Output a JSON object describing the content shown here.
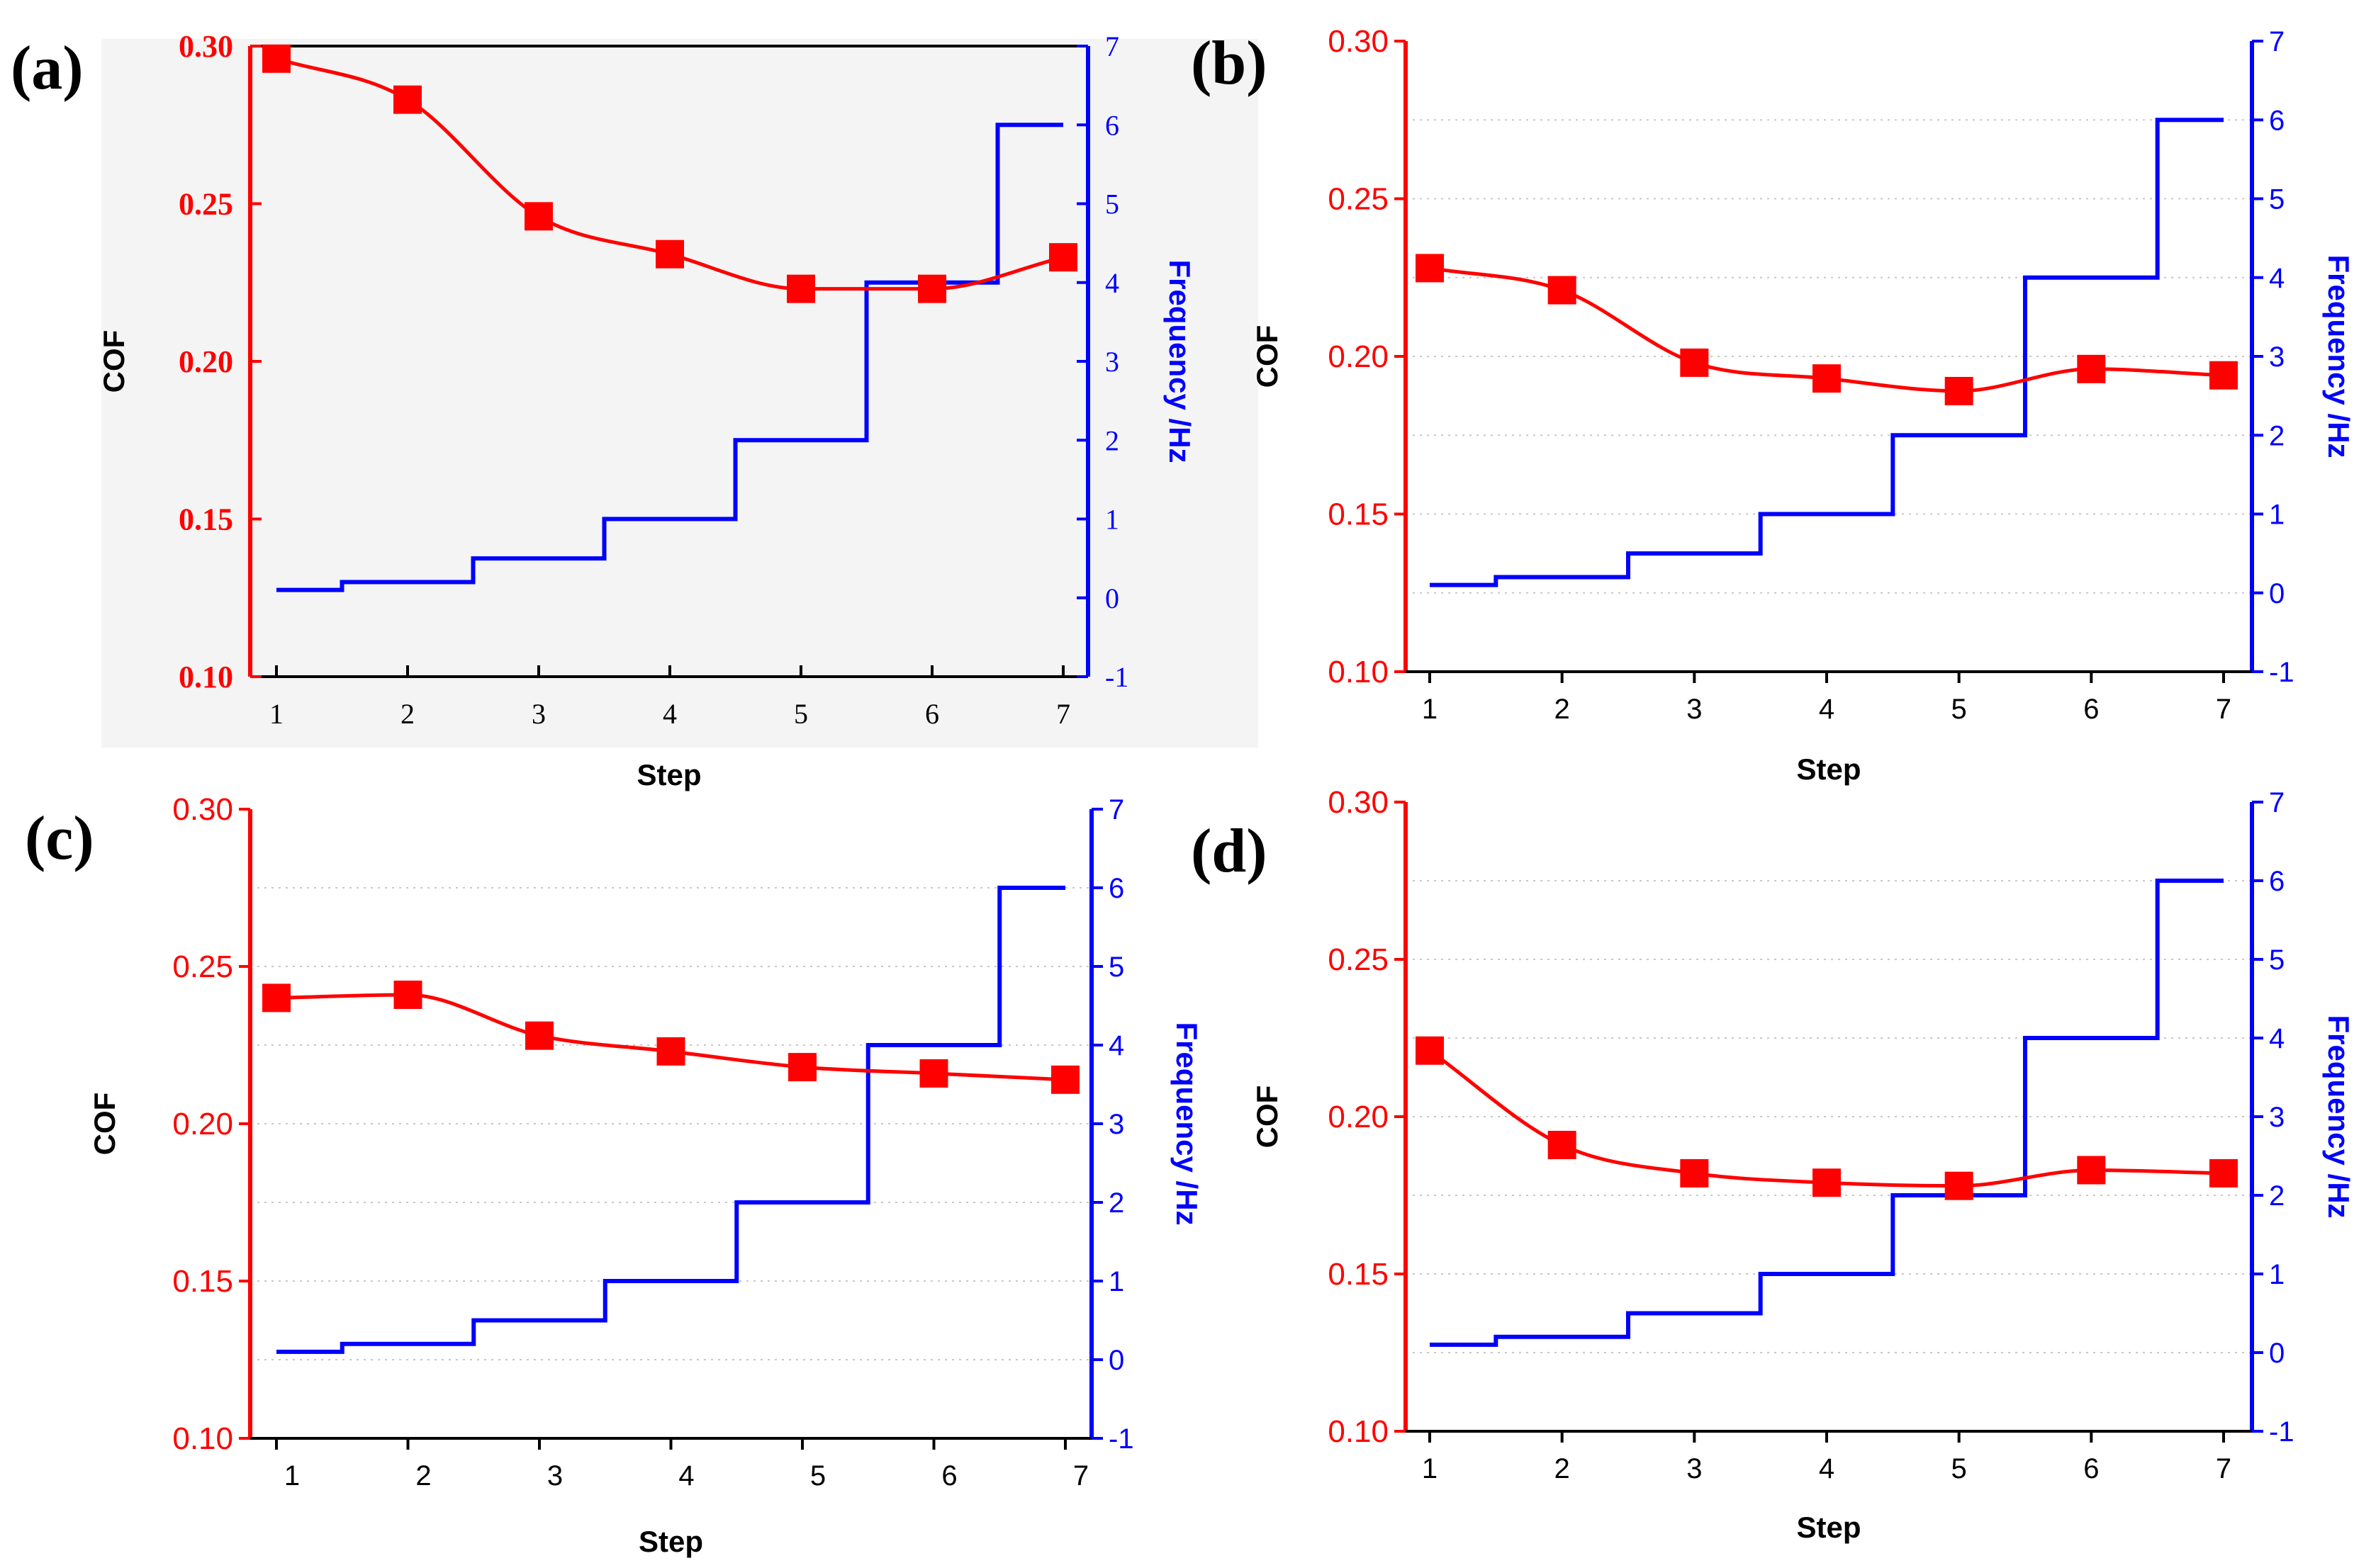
{
  "colors": {
    "cof": "#ff0000",
    "frequency": "#0000ff",
    "axis": "#000000",
    "grid": "#c8c8c8"
  },
  "chart_data": [
    {
      "panel": "(a)",
      "type": "line",
      "xlabel": "Step",
      "ylabel_left": "COF",
      "ylabel_right": "Frequency /Hz",
      "x_ticks": [
        1,
        2,
        3,
        4,
        5,
        6,
        7
      ],
      "y_left": {
        "range": [
          0.1,
          0.3
        ],
        "ticks": [
          "0.10",
          "0.15",
          "0.20",
          "0.25",
          "0.30"
        ]
      },
      "y_right": {
        "range": [
          -1,
          7
        ],
        "ticks": [
          "-1",
          "0",
          "1",
          "2",
          "3",
          "4",
          "5",
          "6",
          "7"
        ]
      },
      "grid": false,
      "series": [
        {
          "axis": "left",
          "marker": "square",
          "x": [
            1,
            2,
            3,
            4,
            5,
            6,
            7
          ],
          "y": [
            0.296,
            0.283,
            0.246,
            0.234,
            0.223,
            0.223,
            0.233
          ]
        },
        {
          "axis": "right",
          "style": "step",
          "x": [
            1,
            2,
            3,
            4,
            5,
            6,
            7
          ],
          "y": [
            0.1,
            0.2,
            0.5,
            1,
            2,
            4,
            6
          ]
        }
      ]
    },
    {
      "panel": "(b)",
      "type": "line",
      "xlabel": "Step",
      "ylabel_left": "COF",
      "ylabel_right": "Frequency /Hz",
      "x_ticks": [
        1,
        2,
        3,
        4,
        5,
        6,
        7
      ],
      "y_left": {
        "range": [
          0.1,
          0.3
        ],
        "ticks": [
          "0.10",
          "0.15",
          "0.20",
          "0.25",
          "0.30"
        ]
      },
      "y_right": {
        "range": [
          -1,
          7
        ],
        "ticks": [
          "-1",
          "0",
          "1",
          "2",
          "3",
          "4",
          "5",
          "6",
          "7"
        ]
      },
      "grid": true,
      "series": [
        {
          "axis": "left",
          "marker": "square",
          "x": [
            1,
            2,
            3,
            4,
            5,
            6,
            7
          ],
          "y": [
            0.228,
            0.221,
            0.198,
            0.193,
            0.189,
            0.196,
            0.194
          ]
        },
        {
          "axis": "right",
          "style": "step",
          "x": [
            1,
            2,
            3,
            4,
            5,
            6,
            7
          ],
          "y": [
            0.1,
            0.2,
            0.5,
            1,
            2,
            4,
            6
          ]
        }
      ]
    },
    {
      "panel": "(c)",
      "type": "line",
      "xlabel": "Step",
      "ylabel_left": "COF",
      "ylabel_right": "Frequency /Hz",
      "x_ticks": [
        1,
        2,
        3,
        4,
        5,
        6,
        7
      ],
      "y_left": {
        "range": [
          0.1,
          0.3
        ],
        "ticks": [
          "0.10",
          "0.15",
          "0.20",
          "0.25",
          "0.30"
        ]
      },
      "y_right": {
        "range": [
          -1,
          7
        ],
        "ticks": [
          "-1",
          "0",
          "1",
          "2",
          "3",
          "4",
          "5",
          "6",
          "7"
        ]
      },
      "grid": true,
      "series": [
        {
          "axis": "left",
          "marker": "square",
          "x": [
            1,
            2,
            3,
            4,
            5,
            6,
            7
          ],
          "y": [
            0.24,
            0.241,
            0.228,
            0.223,
            0.218,
            0.216,
            0.214
          ]
        },
        {
          "axis": "right",
          "style": "step",
          "x": [
            1,
            2,
            3,
            4,
            5,
            6,
            7
          ],
          "y": [
            0.1,
            0.2,
            0.5,
            1,
            2,
            4,
            6
          ]
        }
      ]
    },
    {
      "panel": "(d)",
      "type": "line",
      "xlabel": "Step",
      "ylabel_left": "COF",
      "ylabel_right": "Frequency /Hz",
      "x_ticks": [
        1,
        2,
        3,
        4,
        5,
        6,
        7
      ],
      "y_left": {
        "range": [
          0.1,
          0.3
        ],
        "ticks": [
          "0.10",
          "0.15",
          "0.20",
          "0.25",
          "0.30"
        ]
      },
      "y_right": {
        "range": [
          -1,
          7
        ],
        "ticks": [
          "-1",
          "0",
          "1",
          "2",
          "3",
          "4",
          "5",
          "6",
          "7"
        ]
      },
      "grid": true,
      "series": [
        {
          "axis": "left",
          "marker": "square",
          "x": [
            1,
            2,
            3,
            4,
            5,
            6,
            7
          ],
          "y": [
            0.221,
            0.191,
            0.182,
            0.179,
            0.178,
            0.183,
            0.182
          ]
        },
        {
          "axis": "right",
          "style": "step",
          "x": [
            1,
            2,
            3,
            4,
            5,
            6,
            7
          ],
          "y": [
            0.1,
            0.2,
            0.5,
            1,
            2,
            4,
            6
          ]
        }
      ]
    }
  ]
}
